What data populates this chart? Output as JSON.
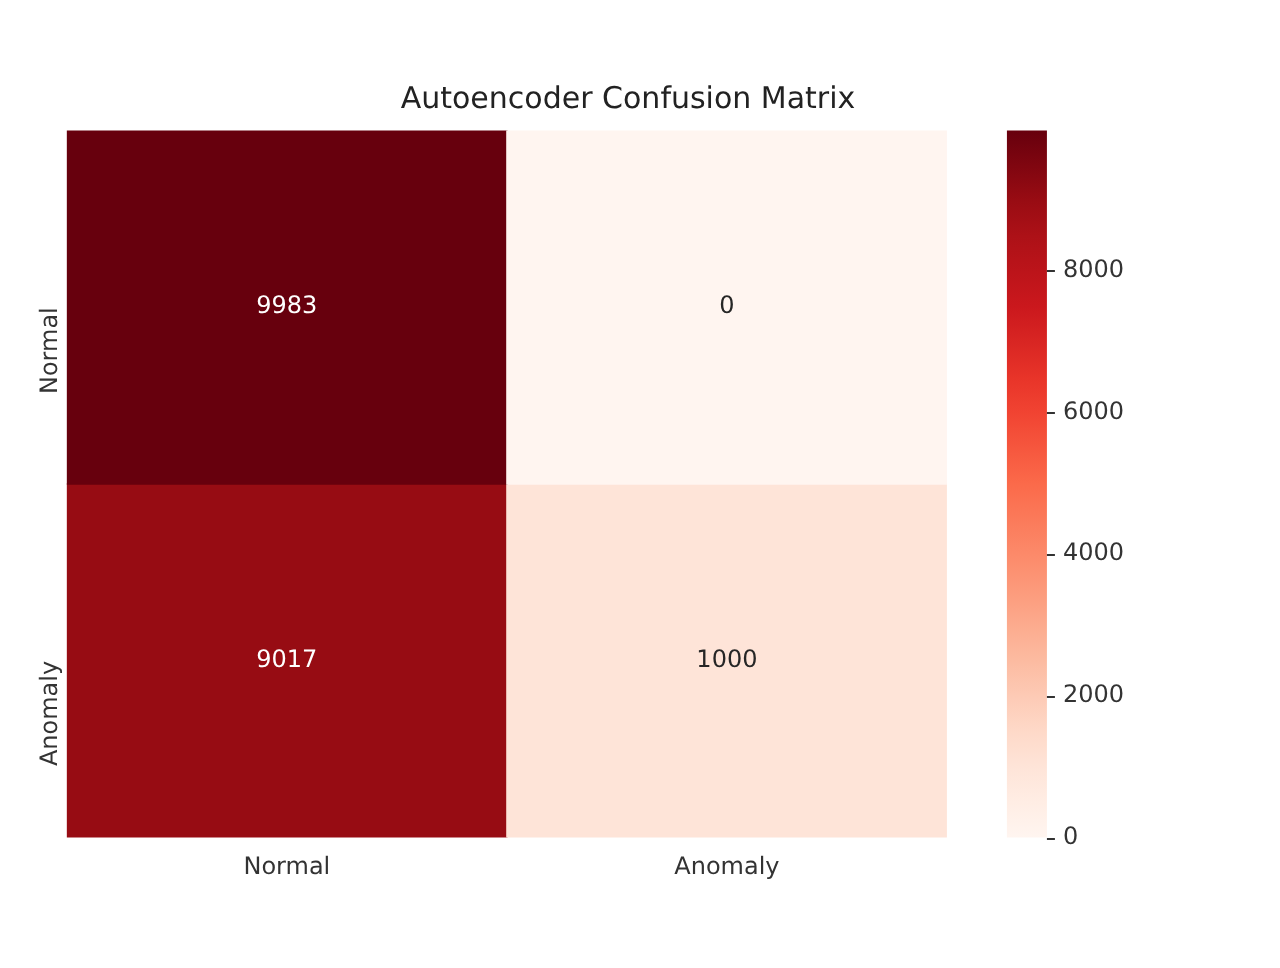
{
  "chart_data": {
    "type": "heatmap",
    "title": "Autoencoder Confusion Matrix",
    "categories": [
      "Normal",
      "Anomaly"
    ],
    "y_categories": [
      "Normal",
      "Anomaly"
    ],
    "cells": [
      [
        9983,
        0
      ],
      [
        9017,
        1000
      ]
    ],
    "data_labels": true,
    "clim": [
      0,
      9983
    ],
    "cticks": [
      0,
      2000,
      4000,
      6000,
      8000
    ]
  }
}
